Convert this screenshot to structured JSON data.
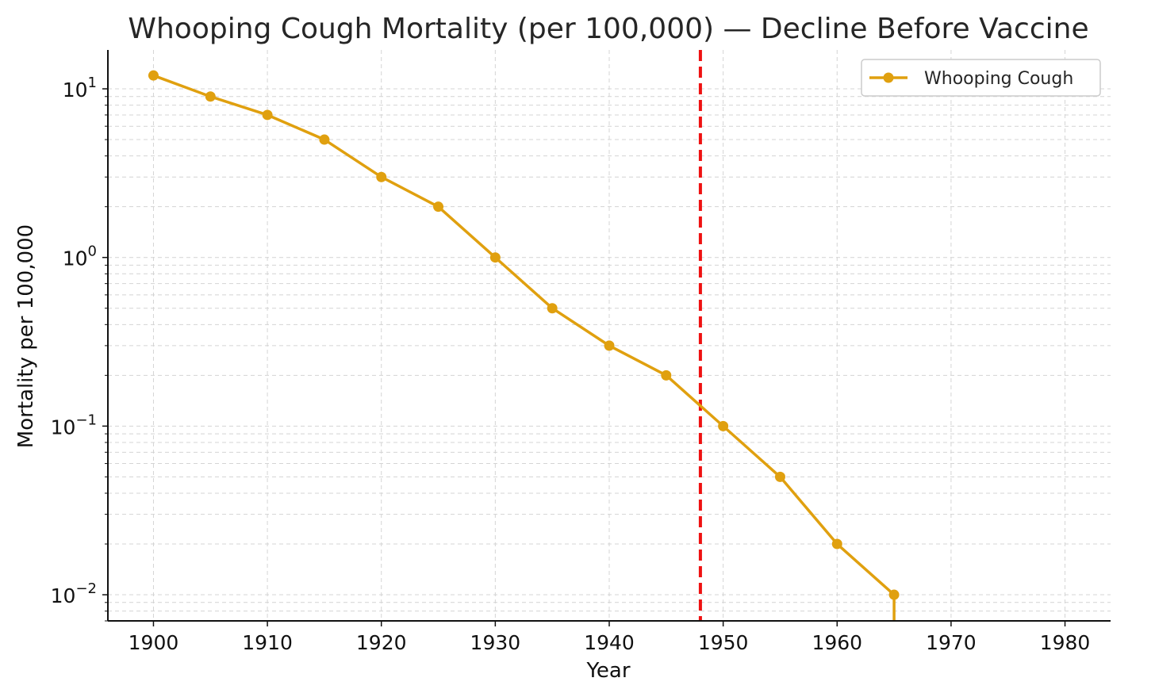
{
  "chart_data": {
    "type": "line",
    "title": "Whooping Cough Mortality (per 100,000) — Decline Before Vaccine",
    "xlabel": "Year",
    "ylabel": "Mortality per 100,000",
    "yscale": "log",
    "xlim": [
      1896,
      1984
    ],
    "ylim": [
      0.007,
      17
    ],
    "xticks": [
      1900,
      1910,
      1920,
      1930,
      1940,
      1950,
      1960,
      1970,
      1980
    ],
    "yticks": [
      {
        "value": 10,
        "base": "10",
        "exp": "1"
      },
      {
        "value": 1,
        "base": "10",
        "exp": "0"
      },
      {
        "value": 0.1,
        "base": "10",
        "exp": "−1"
      },
      {
        "value": 0.01,
        "base": "10",
        "exp": "−2"
      }
    ],
    "grid": true,
    "legend_position": "top-right",
    "series": [
      {
        "name": "Whooping Cough",
        "color": "#E0A00F",
        "x": [
          1900,
          1905,
          1910,
          1915,
          1920,
          1925,
          1930,
          1935,
          1940,
          1945,
          1950,
          1955,
          1960,
          1965,
          1970,
          1975,
          1980
        ],
        "y": [
          12,
          9,
          7,
          5,
          3,
          2,
          1,
          0.5,
          0.3,
          0.2,
          0.1,
          0.05,
          0.02,
          0.01,
          0,
          0,
          0
        ]
      }
    ],
    "vline": {
      "x": 1948,
      "color": "#EE1111",
      "style": "dashed"
    }
  }
}
